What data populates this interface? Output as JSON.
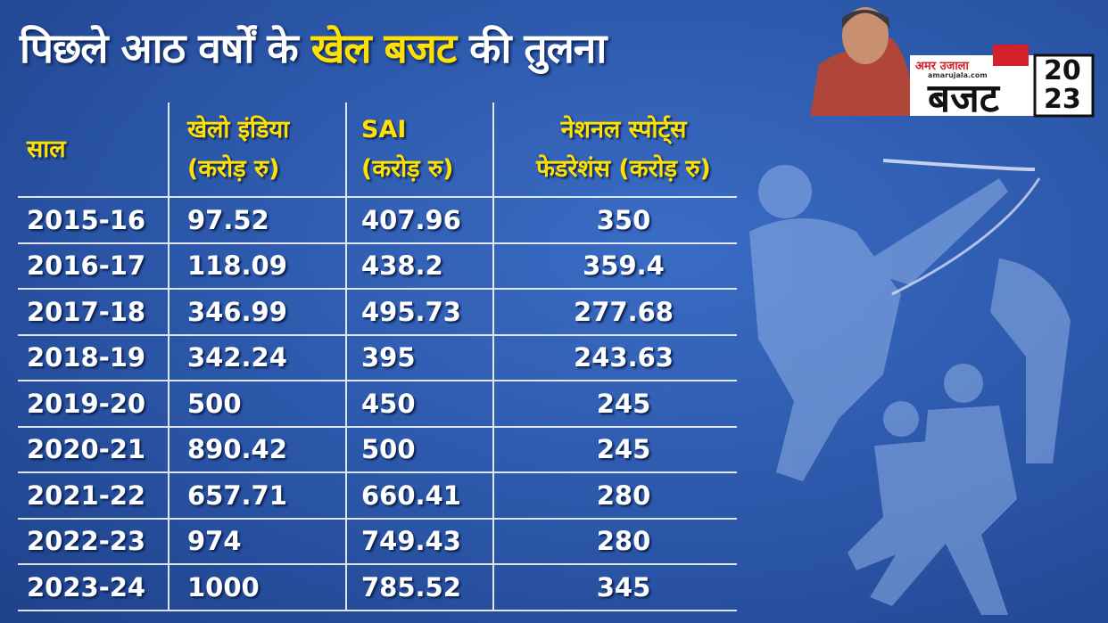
{
  "header": {
    "title": [
      "पिछले आठ वर्षों के",
      "खेल बजट",
      "की तुलना"
    ]
  },
  "logo": {
    "brand": "अमर उजाला",
    "site": "amarujala.com",
    "word": "बजट",
    "year_top": "20",
    "year_bottom": "23"
  },
  "table": {
    "columns": [
      [
        "साल"
      ],
      [
        "खेलो इंडिया",
        "(करोड़ रु)"
      ],
      [
        "SAI",
        "(करोड़ रु)"
      ],
      [
        "नेशनल स्पोर्ट्स",
        "फेडरेशंस (करोड़ रु)"
      ]
    ],
    "rows": [
      [
        "2015-16",
        "97.52",
        "407.96",
        "350"
      ],
      [
        "2016-17",
        "118.09",
        "438.2",
        "359.4"
      ],
      [
        "2017-18",
        "346.99",
        "495.73",
        "277.68"
      ],
      [
        "2018-19",
        "342.24",
        "395",
        "243.63"
      ],
      [
        "2019-20",
        "500",
        "450",
        "245"
      ],
      [
        "2020-21",
        "890.42",
        "500",
        "245"
      ],
      [
        "2021-22",
        "657.71",
        "660.41",
        "280"
      ],
      [
        "2022-23",
        "974",
        "749.43",
        "280"
      ],
      [
        "2023-24",
        "1000",
        "785.52",
        "345"
      ]
    ]
  }
}
